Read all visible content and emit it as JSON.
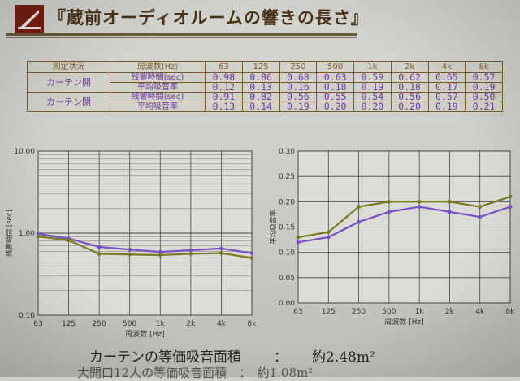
{
  "slide": {
    "title": "『蔵前オーディオルームの響きの長さ』",
    "bottom_line": {
      "label": "カーテンの等価吸音面積",
      "colon": "：",
      "value": "約2.48m²"
    },
    "bottom_line2": "大開口12人の等価吸音面積　：　約1.08m²"
  },
  "table": {
    "header": [
      "測定状況",
      "周波数(Hz)",
      "63",
      "125",
      "250",
      "500",
      "1k",
      "2k",
      "4k",
      "8k"
    ],
    "groups": [
      {
        "condition": "カーテン開",
        "rows": [
          {
            "label": "残響時間(sec)",
            "values": [
              "0.98",
              "0.86",
              "0.68",
              "0.63",
              "0.59",
              "0.62",
              "0.65",
              "0.57"
            ]
          },
          {
            "label": "平均吸音率",
            "values": [
              "0.12",
              "0.13",
              "0.16",
              "0.18",
              "0.19",
              "0.18",
              "0.17",
              "0.19"
            ]
          }
        ]
      },
      {
        "condition": "カーテン閉",
        "rows": [
          {
            "label": "残響時間(sec)",
            "values": [
              "0.91",
              "0.82",
              "0.56",
              "0.55",
              "0.54",
              "0.56",
              "0.57",
              "0.50"
            ]
          },
          {
            "label": "平均吸音率",
            "values": [
              "0.13",
              "0.14",
              "0.19",
              "0.20",
              "0.20",
              "0.20",
              "0.19",
              "0.21"
            ]
          }
        ]
      }
    ]
  },
  "colors": {
    "open": "#7a4fc4",
    "closed": "#7a7a22",
    "grid": "#444444",
    "title": "#4a3418"
  },
  "chart_data": [
    {
      "type": "line",
      "yscale": "log",
      "categories": [
        "63",
        "125",
        "250",
        "500",
        "1k",
        "2k",
        "4k",
        "8k"
      ],
      "ylim": [
        0.1,
        10
      ],
      "yticks": [
        "10.00",
        "1.00",
        "0.10"
      ],
      "xlabel": "周波数 [Hz]",
      "ylabel": "残響時間 [sec]",
      "grid": true,
      "series": [
        {
          "values": [
            0.98,
            0.86,
            0.68,
            0.63,
            0.59,
            0.62,
            0.65,
            0.57
          ]
        },
        {
          "values": [
            0.91,
            0.82,
            0.56,
            0.55,
            0.54,
            0.56,
            0.57,
            0.5
          ]
        }
      ]
    },
    {
      "type": "line",
      "categories": [
        "63",
        "125",
        "250",
        "500",
        "1k",
        "2k",
        "4k",
        "8k"
      ],
      "ylim": [
        0,
        0.3
      ],
      "yticks": [
        "0.30",
        "0.25",
        "0.20",
        "0.15",
        "0.10",
        "0.05",
        "0.00"
      ],
      "xlabel": "周波数 [Hz]",
      "ylabel": "平均吸音率",
      "grid": true,
      "series": [
        {
          "values": [
            0.12,
            0.13,
            0.16,
            0.18,
            0.19,
            0.18,
            0.17,
            0.19
          ]
        },
        {
          "values": [
            0.13,
            0.14,
            0.19,
            0.2,
            0.2,
            0.2,
            0.19,
            0.21
          ]
        }
      ]
    }
  ]
}
